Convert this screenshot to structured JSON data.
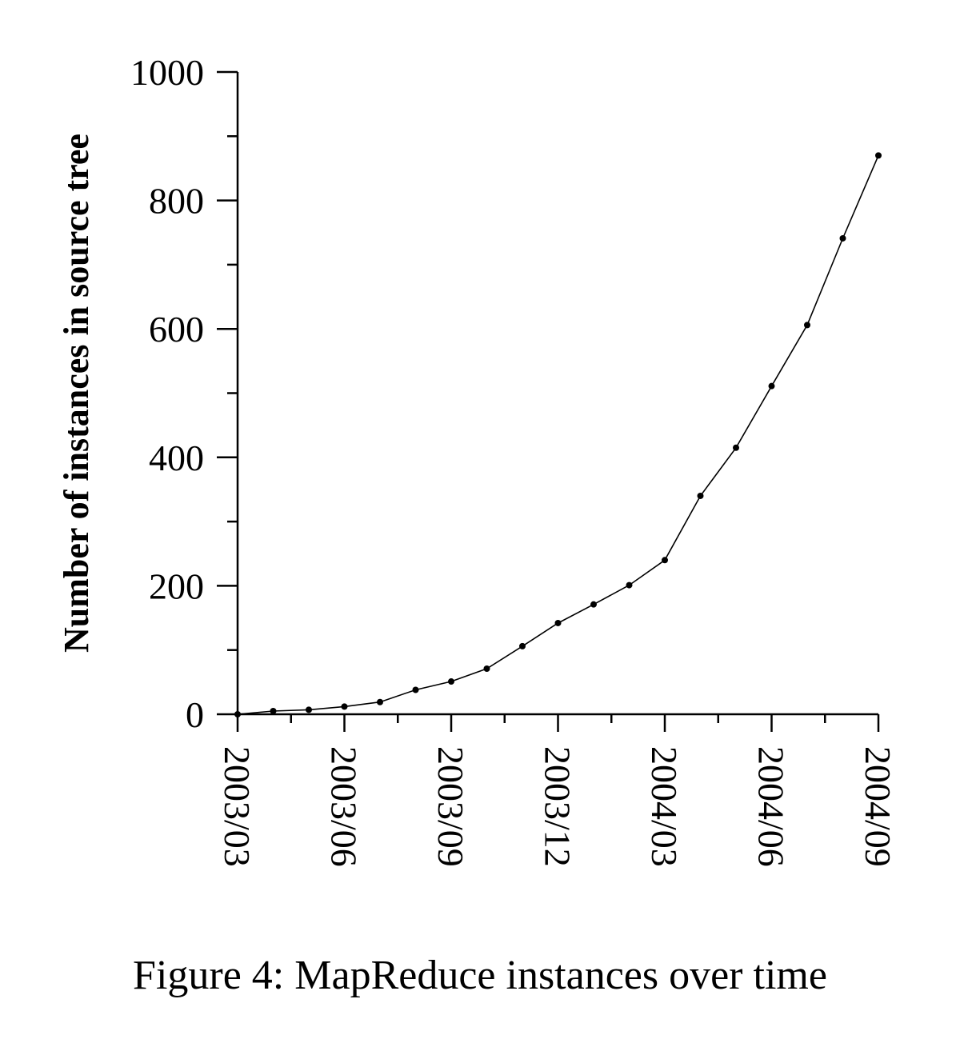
{
  "caption": "Figure 4: MapReduce instances over time",
  "chart_data": {
    "type": "line",
    "title": "",
    "xlabel": "",
    "ylabel": "Number of instances in source tree",
    "x_ticks": [
      "2003/03",
      "2003/06",
      "2003/09",
      "2003/12",
      "2004/03",
      "2004/06",
      "2004/09"
    ],
    "y_ticks": [
      0,
      200,
      400,
      600,
      800,
      1000
    ],
    "ylim": [
      0,
      1000
    ],
    "xlim": [
      "2003/03",
      "2004/09"
    ],
    "grid": false,
    "line_color": "#000000",
    "series": [
      {
        "x": [
          "2003/03",
          "2003/04",
          "2003/05",
          "2003/06",
          "2003/07",
          "2003/08",
          "2003/09",
          "2003/10",
          "2003/11",
          "2003/12",
          "2004/01",
          "2004/02",
          "2004/03",
          "2004/04",
          "2004/05",
          "2004/06",
          "2004/07",
          "2004/08",
          "2004/09"
        ],
        "values": [
          0,
          5,
          7,
          12,
          19,
          38,
          51,
          71,
          106,
          142,
          171,
          201,
          240,
          340,
          415,
          511,
          606,
          741,
          870
        ]
      }
    ]
  }
}
